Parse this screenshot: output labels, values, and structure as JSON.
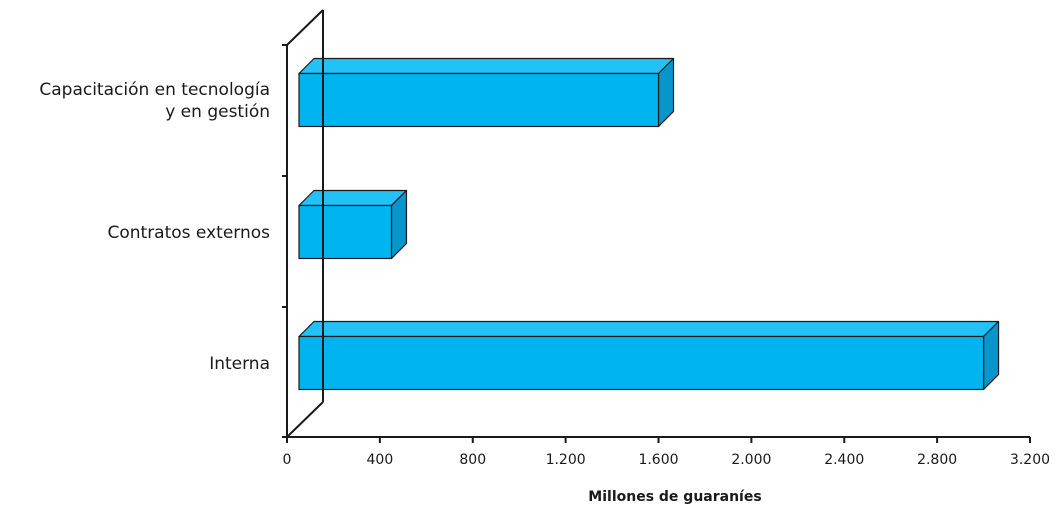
{
  "chart_data": {
    "type": "bar",
    "orientation": "horizontal",
    "style": "3d",
    "categories": [
      [
        "Capacitación en tecnología",
        "y en gestión"
      ],
      [
        "Contratos externos"
      ],
      [
        "Interna"
      ]
    ],
    "values": [
      1600,
      450,
      3000
    ],
    "xlabel": "Millones de guaraníes",
    "ylabel": "",
    "title": "",
    "xlim": [
      0,
      3200
    ],
    "xticks": [
      0,
      400,
      800,
      1200,
      1600,
      2000,
      2400,
      2800,
      3200
    ],
    "xtick_labels": [
      "0",
      "400",
      "800",
      "1.200",
      "1.600",
      "2.000",
      "2.400",
      "2.800",
      "3.200"
    ],
    "grid": false,
    "legend": "none",
    "colors": {
      "bar_front": "#00B4F0",
      "bar_top": "#22C2F6",
      "bar_side": "#0696CC",
      "outline": "#1a1a1a"
    }
  }
}
